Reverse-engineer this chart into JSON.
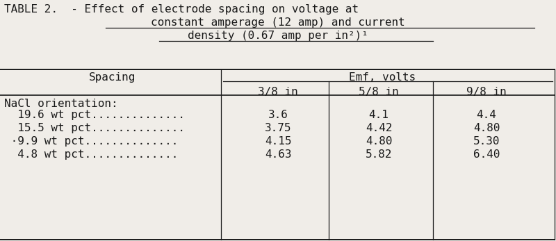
{
  "title_line1": "TABLE 2.  - Effect of electrode spacing on voltage at",
  "title_line2": "constant amperage (12 amp) and current",
  "title_line3": "density (0.67 amp per in²)¹",
  "col_header_left": "Spacing",
  "col_header_right": "Emf, volts",
  "sub_headers": [
    "3/8 in",
    "5/8 in",
    "9/8 in"
  ],
  "section_label": "NaCl orientation:",
  "rows": [
    {
      "label": "  19.6 wt pct..............",
      "values": [
        "3.6",
        "4.1",
        "4.4"
      ]
    },
    {
      "label": "  15.5 wt pct..............",
      "values": [
        "3.75",
        "4.42",
        "4.80"
      ]
    },
    {
      "label": "  ·9.9 wt pct..............",
      "values": [
        "4.15",
        "4.80",
        "5.30"
      ]
    },
    {
      "label": "  4.8 wt pct..............",
      "values": [
        "4.63",
        "5.82",
        "6.40"
      ]
    }
  ],
  "bg_color": "#f0ede8",
  "text_color": "#1a1a1a",
  "font_family": "monospace",
  "font_size": 11.5,
  "title_font_size": 11.5
}
